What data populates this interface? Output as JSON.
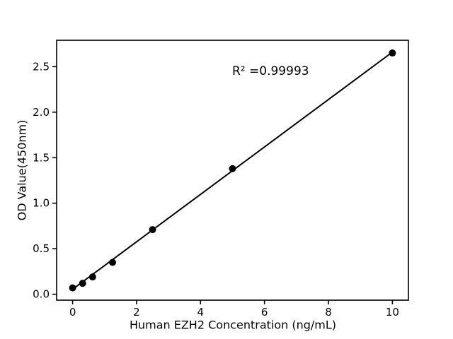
{
  "figure": {
    "background": "#ffffff"
  },
  "chart_data": {
    "type": "scatter",
    "title": "",
    "xlabel": "Human EZH2 Concentration (ng/mL)",
    "ylabel": "OD Value(450nm)",
    "x": [
      0,
      0.3125,
      0.625,
      1.25,
      2.5,
      5,
      10
    ],
    "y": [
      0.07,
      0.12,
      0.19,
      0.35,
      0.71,
      1.38,
      2.65
    ],
    "fit_line": {
      "slope": 0.2605,
      "intercept": 0.055,
      "x_start": 0,
      "x_end": 10,
      "r_squared": 0.99993,
      "label": "R² =0.99993"
    },
    "x_ticks": [
      0,
      2,
      4,
      6,
      8,
      10
    ],
    "x_tick_labels": [
      "0",
      "2",
      "4",
      "6",
      "8",
      "10"
    ],
    "y_ticks": [
      0.0,
      0.5,
      1.0,
      1.5,
      2.0,
      2.5
    ],
    "y_tick_labels": [
      "0.0",
      "0.5",
      "1.0",
      "1.5",
      "2.0",
      "2.5"
    ],
    "xlim": [
      -0.5,
      10.5
    ],
    "ylim": [
      -0.065,
      2.79
    ],
    "grid": false,
    "legend": null,
    "marker_color": "#000000",
    "line_color": "#000000",
    "axis_color": "#000000"
  }
}
